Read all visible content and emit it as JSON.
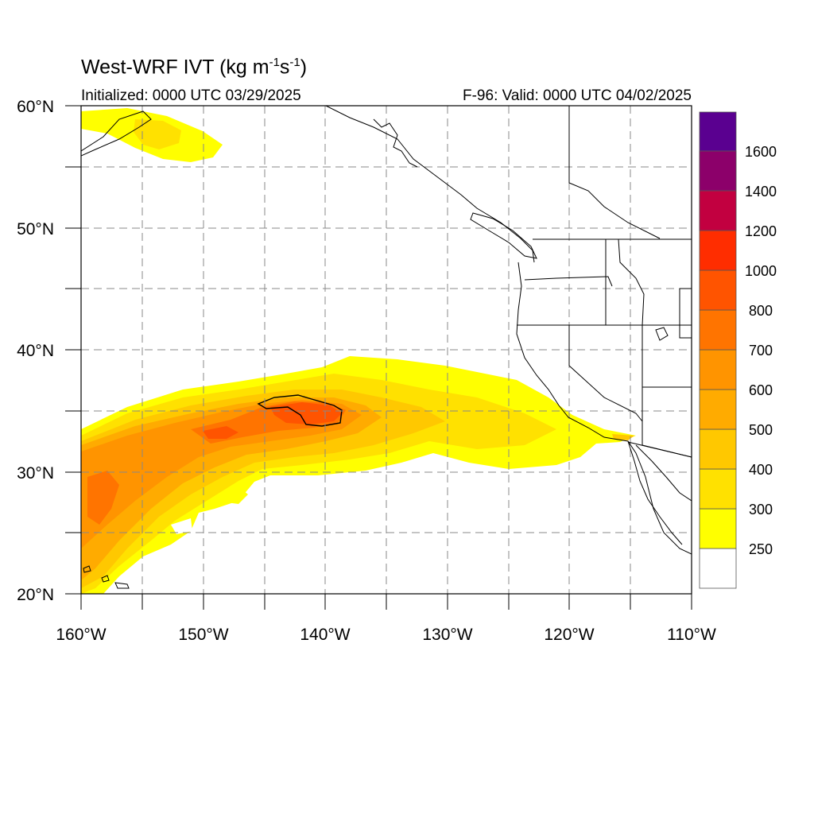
{
  "title": {
    "main": "West-WRF IVT (kg m",
    "exp1": "-1",
    "mid": "s",
    "exp2": "-1",
    "close": ")"
  },
  "initialized": "Initialized: 0000 UTC 03/29/2025",
  "valid": "F-96: Valid: 0000 UTC 04/02/2025",
  "map": {
    "lon_range": [
      -160,
      -110
    ],
    "lat_range": [
      20,
      60
    ],
    "x_ticks": [
      "160°W",
      "150°W",
      "140°W",
      "130°W",
      "120°W",
      "110°W"
    ],
    "y_ticks": [
      "20°N",
      "30°N",
      "40°N",
      "50°N",
      "60°N"
    ],
    "grid": "dashed, every 5 degrees",
    "colors": {
      "coastline": "#000000",
      "grid": "#888888"
    }
  },
  "colorbar": {
    "labels": [
      "250",
      "300",
      "400",
      "500",
      "600",
      "700",
      "800",
      "1000",
      "1200",
      "1400",
      "1600"
    ],
    "colors": [
      "#ffffff",
      "#ffff00",
      "#ffe100",
      "#ffc800",
      "#ffab00",
      "#ff9400",
      "#ff7400",
      "#ff5400",
      "#ff2d00",
      "#ee0010",
      "#c20040",
      "#8c006a",
      "#5a0090"
    ]
  }
}
